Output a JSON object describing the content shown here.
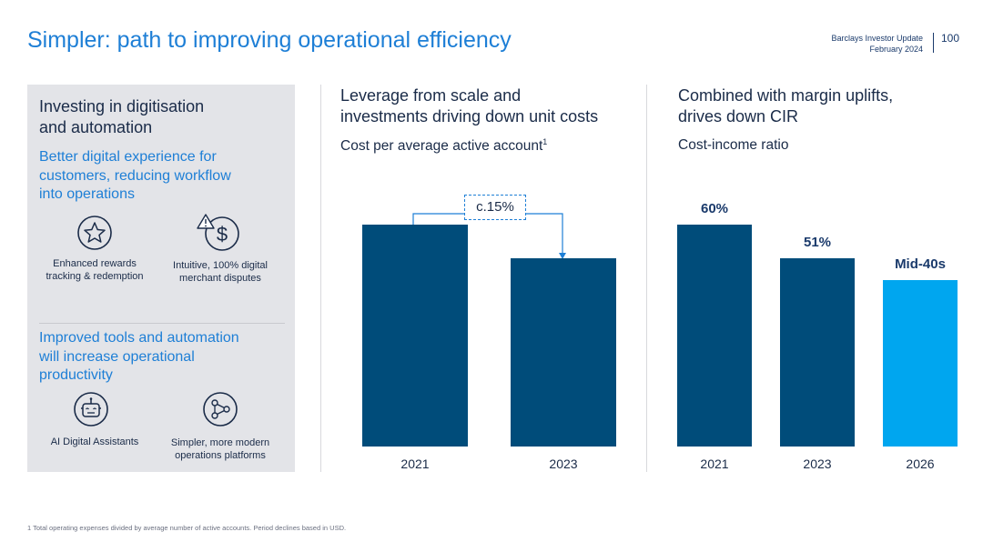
{
  "header": {
    "title": "Simpler: path to improving operational efficiency",
    "right_line1": "Barclays Investor Update",
    "right_line2": "February 2024",
    "page_number": "100"
  },
  "left_panel": {
    "heading_line1": "Investing in digitisation",
    "heading_line2": "and automation",
    "section1": {
      "subheading_line1": "Better digital experience for",
      "subheading_line2": "customers, reducing workflow",
      "subheading_line3": "into operations",
      "items": [
        {
          "icon": "star-icon",
          "line1": "Enhanced rewards",
          "line2": "tracking & redemption"
        },
        {
          "icon": "dollar-alert-icon",
          "line1": "Intuitive, 100% digital",
          "line2": "merchant disputes"
        }
      ]
    },
    "section2": {
      "subheading_line1": "Improved tools and automation",
      "subheading_line2": "will increase operational",
      "subheading_line3": "productivity",
      "items": [
        {
          "icon": "robot-icon",
          "line1": "AI Digital Assistants",
          "line2": ""
        },
        {
          "icon": "workflow-icon",
          "line1": "Simpler, more modern",
          "line2": "operations platforms"
        }
      ]
    }
  },
  "chart1": {
    "title_line1": "Leverage from scale and",
    "title_line2": "investments driving down unit costs",
    "subtitle": "Cost per average active account",
    "subtitle_sup": "1",
    "callout": "c.15%"
  },
  "chart2": {
    "title_line1": "Combined with margin uplifts,",
    "title_line2": "drives down CIR",
    "subtitle": "Cost-income ratio"
  },
  "chart_data": [
    {
      "type": "bar",
      "title": "Cost per average active account",
      "categories": [
        "2021",
        "2023"
      ],
      "values": [
        100,
        85
      ],
      "ylim": [
        0,
        100
      ],
      "annotation": "c.15%",
      "colors": [
        "#004c7a",
        "#004c7a"
      ]
    },
    {
      "type": "bar",
      "title": "Cost-income ratio",
      "categories": [
        "2021",
        "2023",
        "2026"
      ],
      "values": [
        60,
        51,
        45
      ],
      "data_labels": [
        "60%",
        "51%",
        "Mid-40s"
      ],
      "ylim": [
        0,
        60
      ],
      "colors": [
        "#004c7a",
        "#004c7a",
        "#00a6ef"
      ]
    }
  ],
  "footnote": "1 Total operating expenses divided by average number of active accounts. Period declines based in USD."
}
